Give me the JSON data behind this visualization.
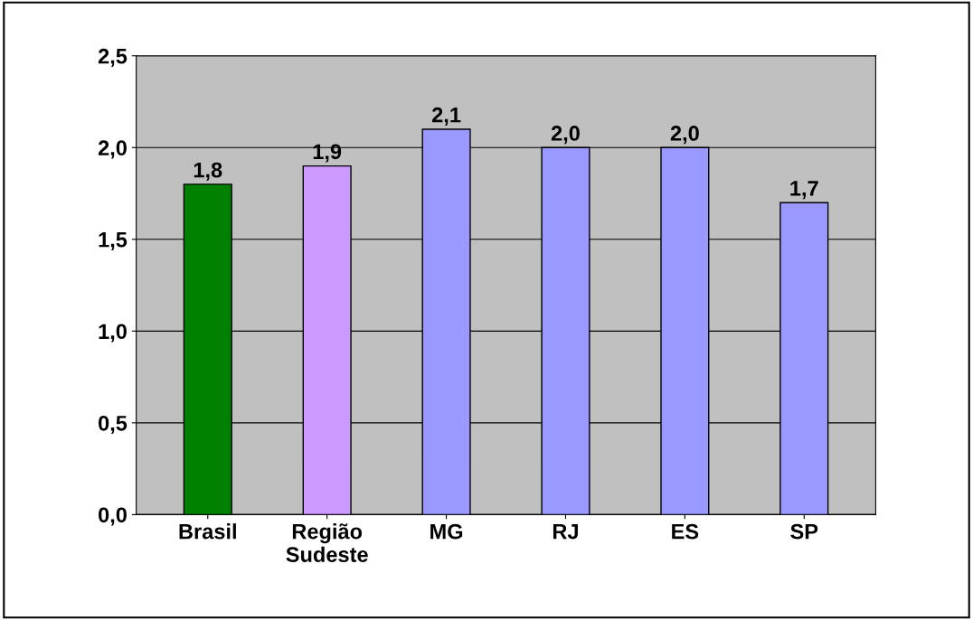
{
  "chart_data": {
    "type": "bar",
    "categories": [
      "Brasil",
      "Região\nSudeste",
      "MG",
      "RJ",
      "ES",
      "SP"
    ],
    "values": [
      1.8,
      1.9,
      2.1,
      2.0,
      2.0,
      1.7
    ],
    "colors": [
      "#008000",
      "#cc99ff",
      "#9999ff",
      "#9999ff",
      "#9999ff",
      "#9999ff"
    ],
    "value_labels": [
      "1,8",
      "1,9",
      "2,1",
      "2,0",
      "2,0",
      "1,7"
    ],
    "ylim": [
      0,
      2.5
    ],
    "yticks": [
      {
        "value": 0,
        "label": "0,0"
      },
      {
        "value": 0.5,
        "label": "0,5"
      },
      {
        "value": 1.0,
        "label": "1,0"
      },
      {
        "value": 1.5,
        "label": "1,5"
      },
      {
        "value": 2.0,
        "label": "2,0"
      },
      {
        "value": 2.5,
        "label": "2,5"
      }
    ],
    "grid": "y",
    "legend": false
  }
}
